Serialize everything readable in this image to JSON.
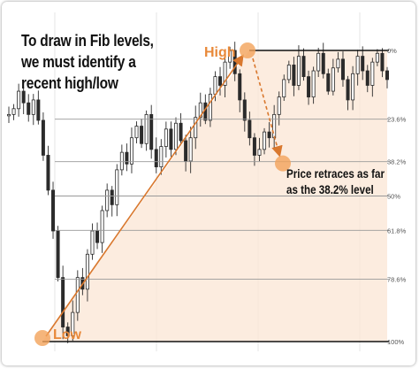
{
  "annotation": {
    "heading_lines": [
      "To draw in Fib levels,",
      "we must identify a",
      "recent high/low"
    ],
    "high_label": "High",
    "low_label": "Low",
    "callout_lines": [
      "Price retraces as far",
      "as the 38.2% level"
    ]
  },
  "colors": {
    "accent_orange": "#f2a35a",
    "arrow_orange": "#d9782e",
    "level_line": "#999999",
    "bound_line": "#111111",
    "fill_zone": "#fbe6d4",
    "candle": "#2b2b2b"
  },
  "chart_data": {
    "type": "line",
    "title": "",
    "series": [
      {
        "name": "",
        "values": [
          0.78,
          0.8,
          0.86,
          0.82,
          0.78,
          0.83,
          0.76,
          0.64,
          0.52,
          0.38,
          0.22,
          0.05,
          0.02,
          0.1,
          0.22,
          0.18,
          0.3,
          0.38,
          0.34,
          0.45,
          0.52,
          0.47,
          0.59,
          0.65,
          0.61,
          0.7,
          0.74,
          0.68,
          0.78,
          0.66,
          0.6,
          0.67,
          0.73,
          0.66,
          0.75,
          0.69,
          0.62,
          0.7,
          0.77,
          0.82,
          0.76,
          0.85,
          0.91,
          0.88,
          0.96,
          1.0,
          0.92,
          0.83,
          0.76,
          0.7,
          0.64,
          0.66,
          0.72,
          0.7,
          0.78,
          0.84,
          0.9,
          0.95,
          0.88,
          0.98,
          0.91,
          0.84,
          0.93,
          0.99,
          0.92,
          0.86,
          0.94,
          0.97,
          0.9,
          0.83,
          0.92,
          0.98,
          0.93,
          0.88,
          0.96,
          0.99,
          0.93,
          0.9
        ]
      }
    ],
    "fib_levels": [
      {
        "label": "0%",
        "value": 0.0
      },
      {
        "label": "23.6%",
        "value": 0.236
      },
      {
        "label": "38.2%",
        "value": 0.382
      },
      {
        "label": "50%",
        "value": 0.5
      },
      {
        "label": "61.8%",
        "value": 0.618
      },
      {
        "label": "78.6%",
        "value": 0.786
      },
      {
        "label": "100%",
        "value": 1.0
      }
    ],
    "retracement_point_level": 0.382,
    "grid": true
  }
}
